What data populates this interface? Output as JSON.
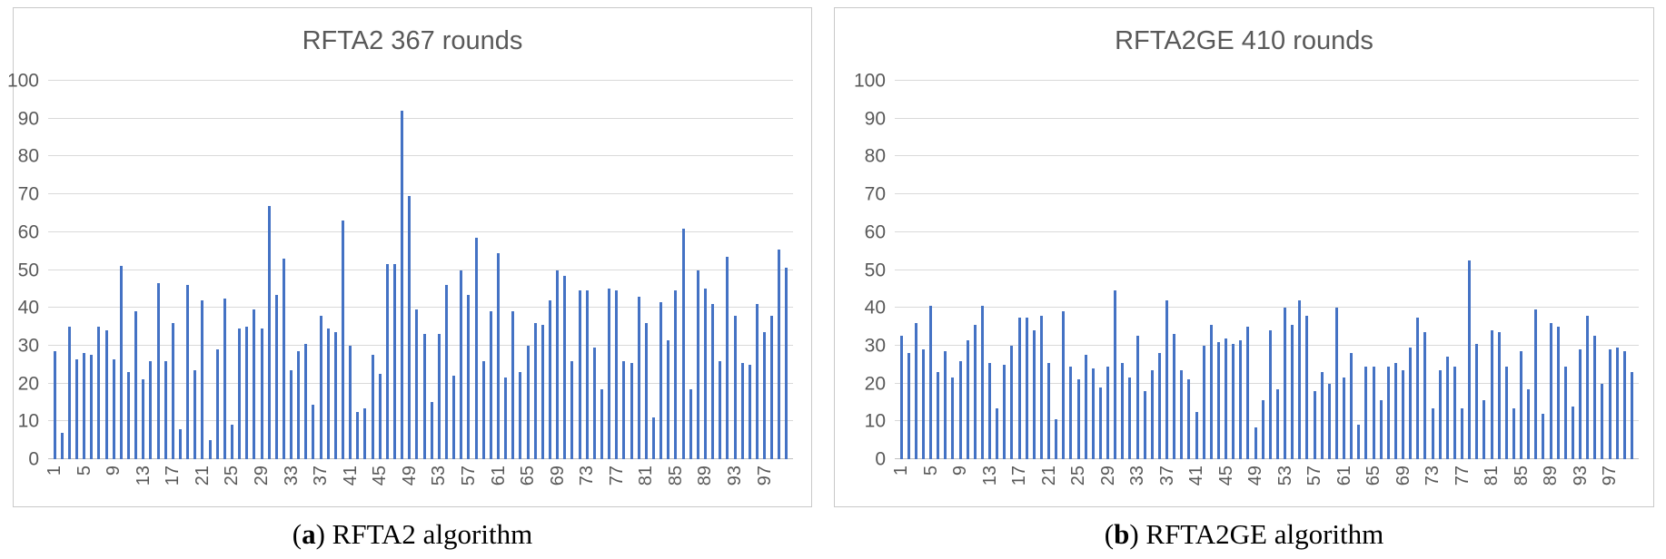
{
  "page": {
    "background": "#ffffff",
    "description": "Figure with two bar charts comparing algorithm rounds"
  },
  "colors": {
    "bar": "#4472c4",
    "gridline": "#d9d9d9",
    "axis_line": "#bfbfbf",
    "axis_text": "#595959",
    "title_text": "#595959",
    "panel_border": "#c9c9c9",
    "caption_text": "#000000"
  },
  "chart_data": [
    {
      "type": "bar",
      "title": "RFTA2 367 rounds",
      "caption": {
        "open": "(",
        "letter": "a",
        "close": ")",
        "rest": " RFTA2 algorithm"
      },
      "xlabel": "",
      "ylabel": "",
      "ylim": [
        0,
        100
      ],
      "y_ticks": [
        0,
        10,
        20,
        30,
        40,
        50,
        60,
        70,
        80,
        90,
        100
      ],
      "x_tick_start": 1,
      "x_tick_step": 4,
      "x_tick_labels": [
        "1",
        "5",
        "9",
        "13",
        "17",
        "21",
        "25",
        "29",
        "33",
        "37",
        "41",
        "45",
        "49",
        "53",
        "57",
        "61",
        "65",
        "69",
        "73",
        "77",
        "81",
        "85",
        "89",
        "93",
        "97"
      ],
      "grid": true,
      "legend": false,
      "bar_color": "#4472c4",
      "n_bars": 100,
      "values": [
        28.5,
        7,
        35,
        26.5,
        28,
        27.5,
        35,
        34,
        26.5,
        51,
        23,
        39,
        21,
        26,
        46.5,
        26,
        36,
        8,
        46,
        23.5,
        42,
        5,
        29,
        42.5,
        9,
        34.5,
        35,
        39.5,
        34.5,
        67,
        43.5,
        53,
        23.5,
        28.5,
        30.5,
        14.5,
        38,
        34.5,
        33.5,
        63,
        30,
        12.5,
        13.5,
        27.5,
        22.5,
        51.5,
        51.5,
        92,
        69.5,
        39.5,
        33,
        15,
        33,
        46,
        22,
        50,
        43.5,
        58.5,
        26,
        39,
        54.5,
        21.5,
        39,
        23,
        30,
        36,
        35.5,
        42,
        50,
        48.5,
        26,
        44.5,
        44.5,
        29.5,
        18.5,
        45,
        44.5,
        26,
        25.5,
        43,
        36,
        11,
        41.5,
        31.5,
        44.5,
        61,
        18.5,
        50,
        45,
        41,
        26,
        53.5,
        38,
        25.5,
        25,
        41,
        33.5,
        38,
        55.5,
        50.5
      ]
    },
    {
      "type": "bar",
      "title": "RFTA2GE 410 rounds",
      "caption": {
        "open": "(",
        "letter": "b",
        "close": ")",
        "rest": " RFTA2GE algorithm"
      },
      "xlabel": "",
      "ylabel": "",
      "ylim": [
        0,
        100
      ],
      "y_ticks": [
        0,
        10,
        20,
        30,
        40,
        50,
        60,
        70,
        80,
        90,
        100
      ],
      "x_tick_start": 1,
      "x_tick_step": 4,
      "x_tick_labels": [
        "1",
        "5",
        "9",
        "13",
        "17",
        "21",
        "25",
        "29",
        "33",
        "37",
        "41",
        "45",
        "49",
        "53",
        "57",
        "61",
        "65",
        "69",
        "73",
        "77",
        "81",
        "85",
        "89",
        "93",
        "97"
      ],
      "grid": true,
      "legend": false,
      "bar_color": "#4472c4",
      "n_bars": 100,
      "values": [
        32.5,
        28,
        36,
        29,
        40.5,
        23,
        28.5,
        21.5,
        26,
        31.5,
        35.5,
        40.5,
        25.5,
        13.5,
        25,
        30,
        37.5,
        37.5,
        34,
        38,
        25.5,
        10.5,
        39,
        24.5,
        21,
        27.5,
        24,
        19,
        24.5,
        44.5,
        25.5,
        21.5,
        32.5,
        18,
        23.5,
        28,
        42,
        33,
        23.5,
        21,
        12.5,
        30,
        35.5,
        31,
        32,
        30.5,
        31.5,
        35,
        8.5,
        15.5,
        34,
        18.5,
        40,
        35.5,
        42,
        38,
        18,
        23,
        20,
        40,
        21.5,
        28,
        9,
        24.5,
        24.5,
        15.5,
        24.5,
        25.5,
        23.5,
        29.5,
        37.5,
        33.5,
        13.5,
        23.5,
        27,
        24.5,
        13.5,
        52.5,
        30.5,
        15.5,
        34,
        33.5,
        24.5,
        13.5,
        28.5,
        18.5,
        39.5,
        12,
        36,
        35,
        24.5,
        14,
        29,
        38,
        32.5,
        20,
        29,
        29.5,
        28.5,
        23
      ]
    }
  ]
}
